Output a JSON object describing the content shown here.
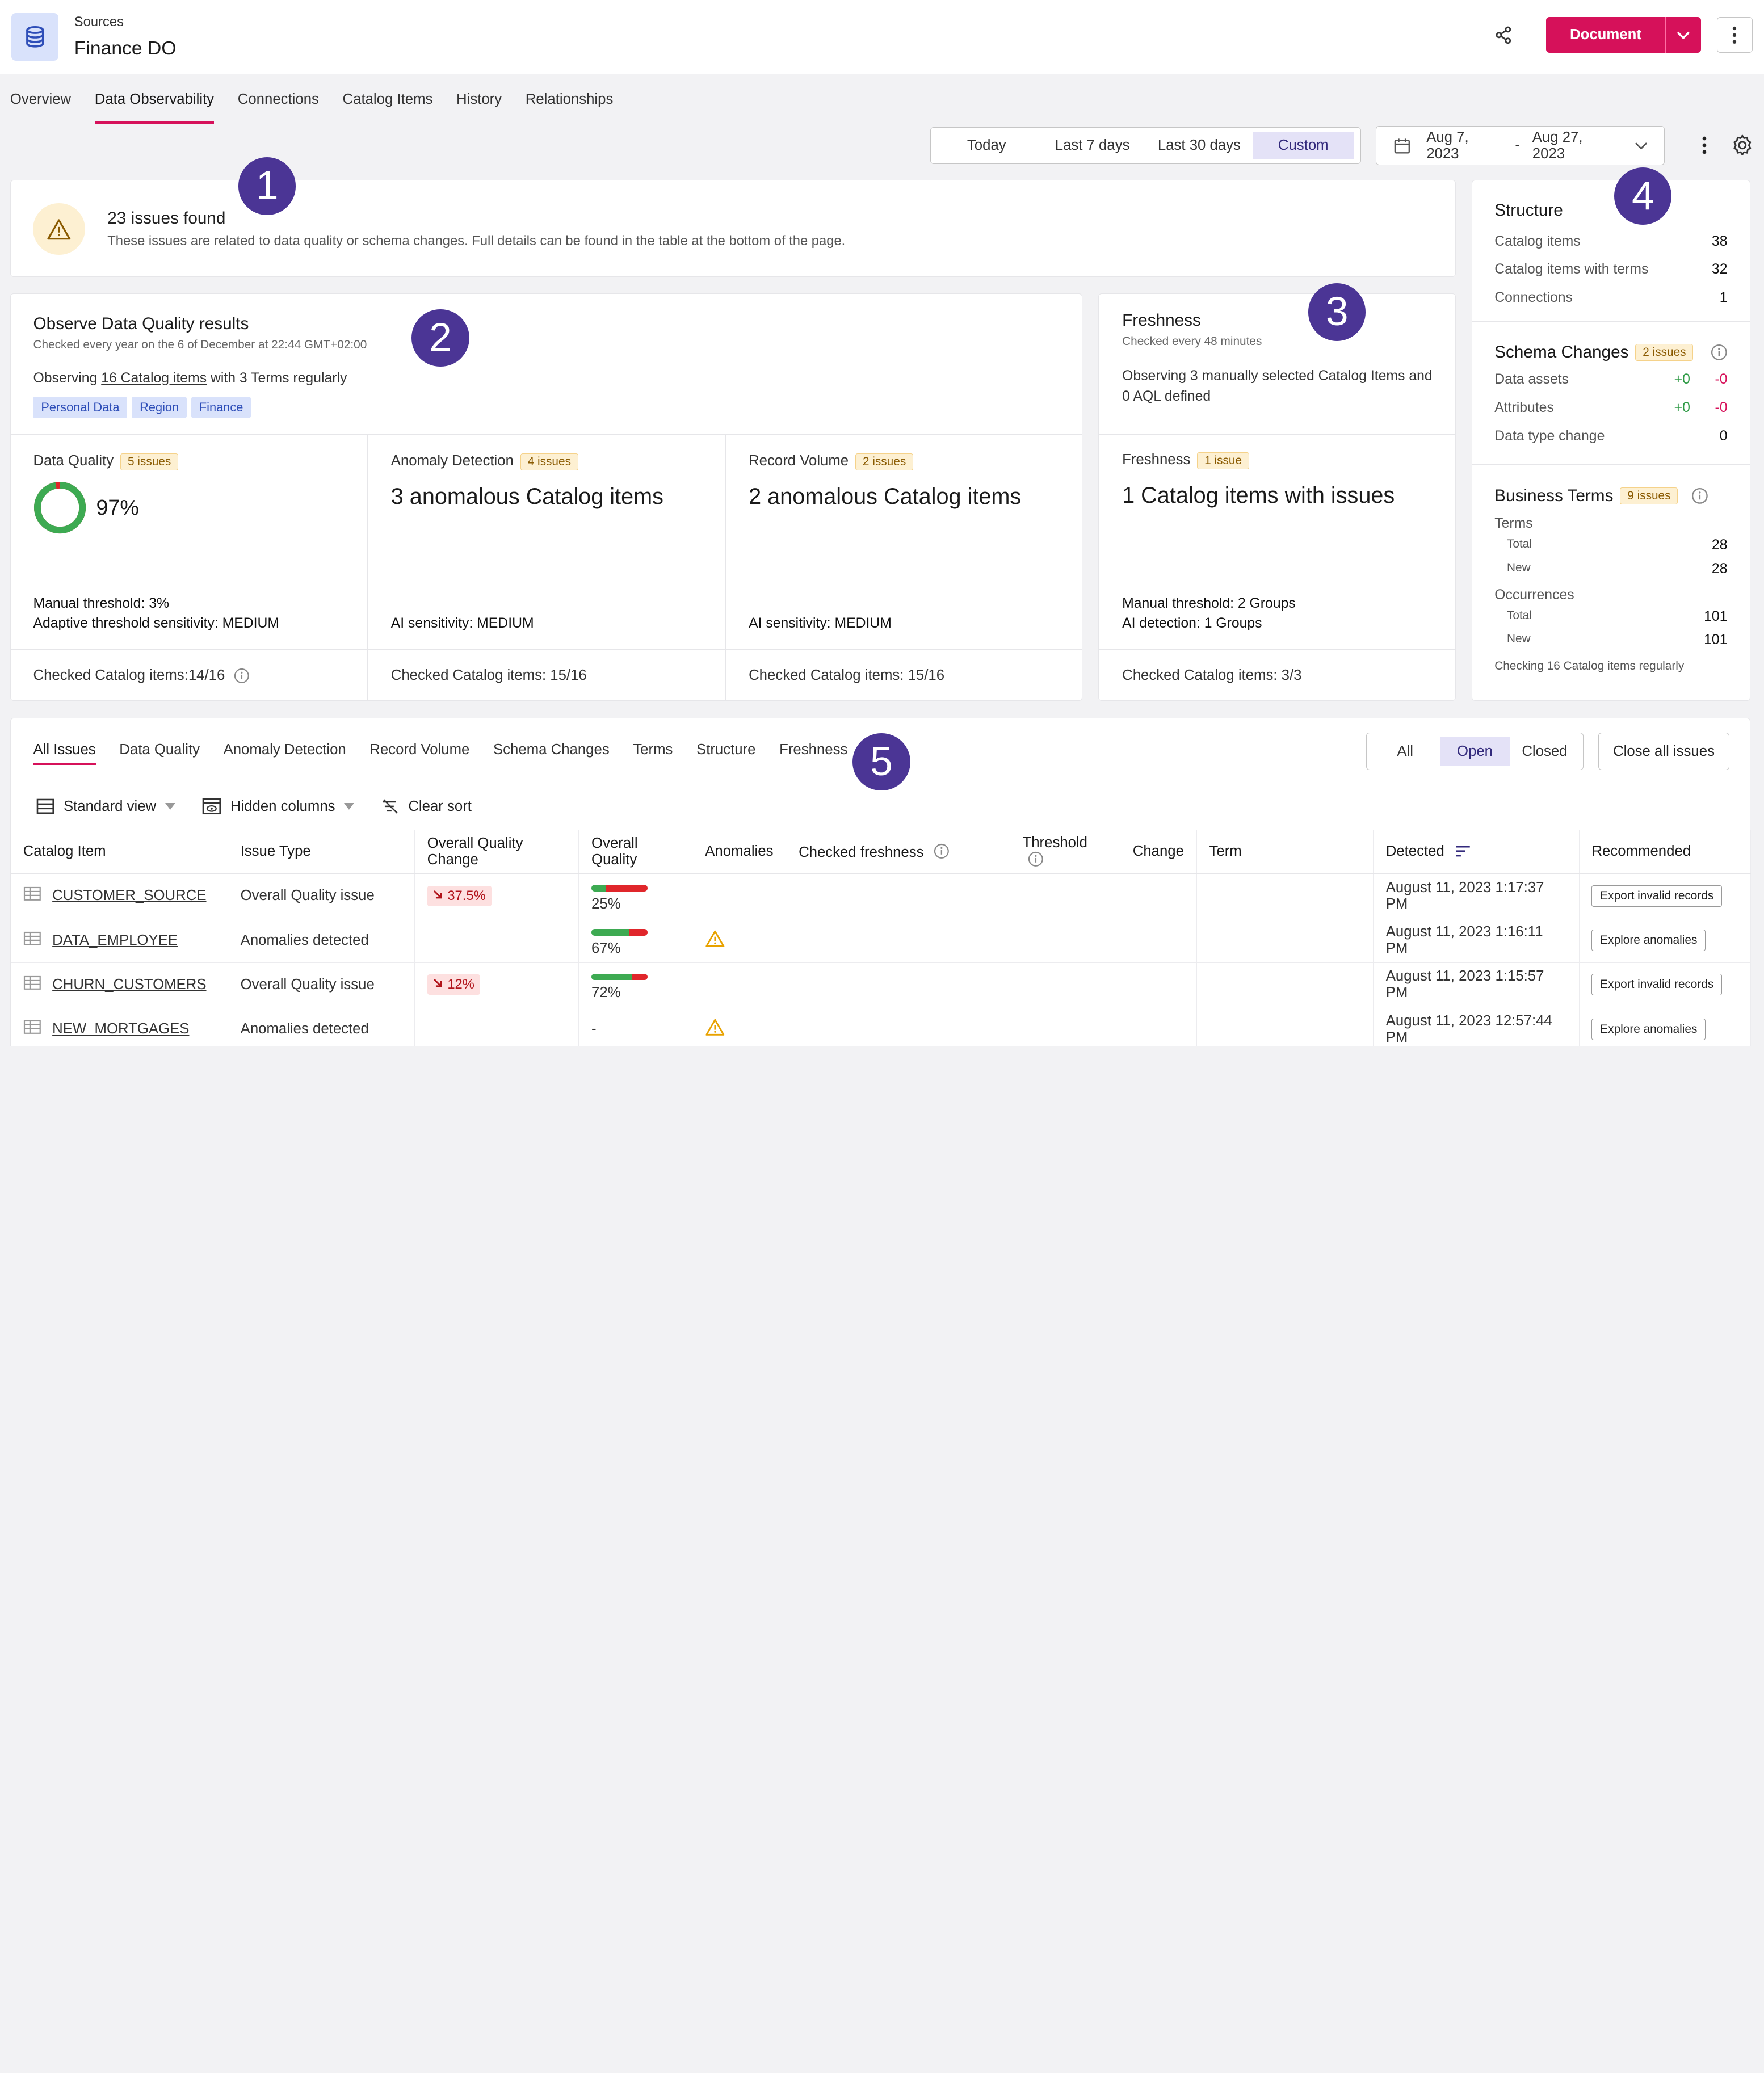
{
  "header": {
    "breadcrumb": "Sources",
    "title": "Finance DO",
    "document_label": "Document"
  },
  "tabs": [
    "Overview",
    "Data Observability",
    "Connections",
    "Catalog Items",
    "History",
    "Relationships"
  ],
  "range": {
    "options": [
      "Today",
      "Last 7 days",
      "Last 30 days",
      "Custom"
    ],
    "selected": "Custom"
  },
  "dates": {
    "from": "Aug 7, 2023",
    "sep": "-",
    "to": "Aug 27, 2023"
  },
  "markers": [
    "1",
    "2",
    "3",
    "4",
    "5"
  ],
  "issues": {
    "title": "23 issues found",
    "subtitle": "These issues are related to data quality or schema changes. Full details can be found in the table at the bottom of the page."
  },
  "dq": {
    "title": "Observe Data Quality results",
    "checked": "Checked every year on the 6 of December at 22:44 GMT+02:00",
    "observing_pre": "Observing ",
    "observing_link": "16 Catalog items",
    "observing_post": " with 3 Terms regularly",
    "tags": [
      "Personal Data",
      "Region",
      "Finance"
    ],
    "quality": {
      "label": "Data Quality",
      "badge": "5 issues",
      "value": "97%",
      "pct": 97,
      "threshold_label": "Manual threshold: ",
      "threshold": "3%",
      "sens_label": "Adaptive threshold sensitivity: ",
      "sens": "MEDIUM",
      "checked_label": "Checked Catalog items:",
      "checked": "14/16"
    },
    "anomaly": {
      "label": "Anomaly Detection",
      "badge": "4 issues",
      "headline": "3 anomalous Catalog items",
      "sens_label": "AI sensitivity: ",
      "sens": "MEDIUM",
      "checked_label": "Checked Catalog items: ",
      "checked": "15/16"
    },
    "volume": {
      "label": "Record Volume",
      "badge": "2 issues",
      "headline": "2 anomalous Catalog items",
      "sens_label": "AI sensitivity: ",
      "sens": "MEDIUM",
      "checked_label": "Checked Catalog items: ",
      "checked": "15/16"
    }
  },
  "fresh": {
    "title": "Freshness",
    "checked": "Checked every 48 minutes",
    "observing": "Observing 3 manually selected Catalog Items and 0 AQL defined",
    "label": "Freshness",
    "badge": "1 issue",
    "headline": "1 Catalog items with issues",
    "threshold_label": "Manual threshold: ",
    "threshold": "2 Groups",
    "ai_label": "AI detection: ",
    "ai": "1 Groups",
    "checked_label": "Checked Catalog items: ",
    "checked_val": "3/3"
  },
  "structure": {
    "title": "Structure",
    "rows": [
      {
        "k": "Catalog items",
        "v": "38"
      },
      {
        "k": "Catalog items with terms",
        "v": "32"
      },
      {
        "k": "Connections",
        "v": "1"
      }
    ]
  },
  "schema": {
    "title": "Schema Changes",
    "badge": "2 issues",
    "rows": [
      {
        "k": "Data assets",
        "a": "+0",
        "b": "-0"
      },
      {
        "k": "Attributes",
        "a": "+0",
        "b": "-0"
      }
    ],
    "dtype_label": "Data type change",
    "dtype": "0"
  },
  "terms": {
    "title": "Business Terms",
    "badge": "9 issues",
    "terms_label": "Terms",
    "total_label": "Total",
    "total": "28",
    "new_label": "New",
    "new": "28",
    "occ_label": "Occurrences",
    "occ_total": "101",
    "occ_new": "101",
    "footer": "Checking 16 Catalog items regularly"
  },
  "issuesTabs": [
    "All Issues",
    "Data Quality",
    "Anomaly Detection",
    "Record Volume",
    "Schema Changes",
    "Terms",
    "Structure",
    "Freshness"
  ],
  "statusSeg": [
    "All",
    "Open",
    "Closed"
  ],
  "close_all": "Close all issues",
  "tools": {
    "view": "Standard view",
    "hidden": "Hidden columns",
    "clear": "Clear sort"
  },
  "columns": [
    "Catalog Item",
    "Issue Type",
    "Overall Quality Change",
    "Overall Quality",
    "Anomalies",
    "Checked freshness",
    "Threshold",
    "Change",
    "Term",
    "Detected",
    "Recommended"
  ],
  "rows": [
    {
      "item": "CUSTOMER_SOURCE",
      "type": "Overall Quality issue",
      "change": "37.5%",
      "quality": "25%",
      "qpct": 25,
      "anomaly": false,
      "detected": "August 11, 2023 1:17:37 PM",
      "rec": "Export invalid records"
    },
    {
      "item": "DATA_EMPLOYEE",
      "type": "Anomalies detected",
      "change": "",
      "quality": "67%",
      "qpct": 67,
      "anomaly": true,
      "detected": "August 11, 2023 1:16:11 PM",
      "rec": "Explore anomalies"
    },
    {
      "item": "CHURN_CUSTOMERS",
      "type": "Overall Quality issue",
      "change": "12%",
      "quality": "72%",
      "qpct": 72,
      "anomaly": false,
      "detected": "August 11, 2023 1:15:57 PM",
      "rec": "Export invalid records"
    },
    {
      "item": "NEW_MORTGAGES",
      "type": "Anomalies detected",
      "change": "",
      "quality": "-",
      "qpct": null,
      "anomaly": true,
      "detected": "August 11, 2023 12:57:44 PM",
      "rec": "Explore anomalies"
    }
  ],
  "colors": {
    "accent": "#d6115a",
    "marker": "#4b3595",
    "good": "#3daa52",
    "bad": "#e0262b"
  }
}
